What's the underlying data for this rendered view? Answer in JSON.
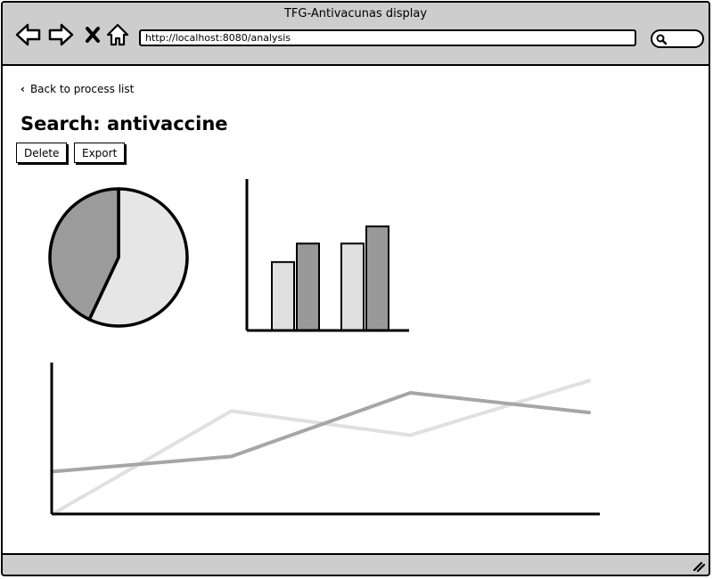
{
  "window": {
    "title": "TFG-Antivacunas display",
    "url": "http://localhost:8080/analysis"
  },
  "nav": {
    "back_icon": "arrow-left-icon",
    "forward_icon": "arrow-right-icon",
    "stop_icon": "close-icon",
    "home_icon": "home-icon",
    "search_icon": "search-icon"
  },
  "page": {
    "back_link": "Back to process list",
    "title": "Search: antivaccine",
    "buttons": {
      "delete": "Delete",
      "export": "Export"
    }
  },
  "colors": {
    "light": "#e6e6e6",
    "mid": "#9b9b9b",
    "line_light": "#e0e0e0",
    "line_dark": "#a6a6a6",
    "chrome": "#cdcdcd"
  },
  "chart_data": [
    {
      "type": "pie",
      "values": [
        57,
        43
      ],
      "colors": [
        "#e6e6e6",
        "#9b9b9b"
      ]
    },
    {
      "type": "bar",
      "categories": [
        "",
        ""
      ],
      "series": [
        {
          "values": [
            48,
            61
          ],
          "color": "#e0e0e0"
        },
        {
          "values": [
            61,
            73
          ],
          "color": "#999999"
        }
      ],
      "ylim": [
        0,
        100
      ]
    },
    {
      "type": "line",
      "x": [
        0,
        1,
        2,
        3
      ],
      "series": [
        {
          "values": [
            0,
            68,
            52,
            88
          ],
          "color": "#e0e0e0"
        },
        {
          "values": [
            28,
            38,
            80,
            67
          ],
          "color": "#a6a6a6"
        }
      ],
      "ylim": [
        0,
        100
      ]
    }
  ]
}
